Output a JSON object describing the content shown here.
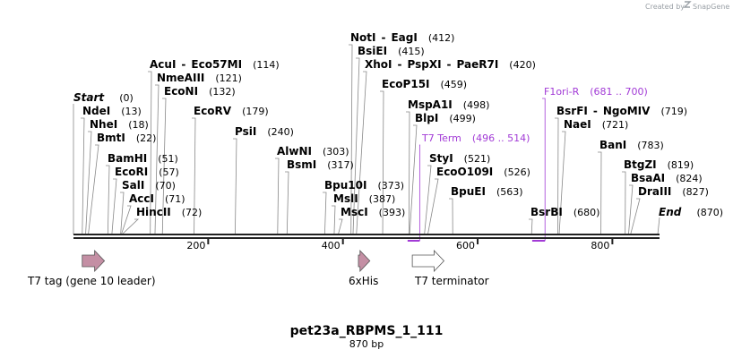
{
  "credit": {
    "text": "Created by",
    "brand": "SnapGene"
  },
  "map": {
    "title": "pet23a_RBPMS_1_111",
    "subtitle": "870 bp",
    "length": 870,
    "ticks": [
      200,
      400,
      600,
      800
    ],
    "ends": [
      {
        "name": "Start",
        "pos": "(0)"
      },
      {
        "name": "End",
        "pos": "(870)"
      }
    ],
    "sites": [
      {
        "names": [
          "NdeI"
        ],
        "pos": 13
      },
      {
        "names": [
          "NheI"
        ],
        "pos": 18
      },
      {
        "names": [
          "BmtI"
        ],
        "pos": 22
      },
      {
        "names": [
          "BamHI"
        ],
        "pos": 51
      },
      {
        "names": [
          "EcoRI"
        ],
        "pos": 57
      },
      {
        "names": [
          "SalI"
        ],
        "pos": 70
      },
      {
        "names": [
          "AccI"
        ],
        "pos": 71
      },
      {
        "names": [
          "HincII"
        ],
        "pos": 72
      },
      {
        "names": [
          "AcuI",
          "Eco57MI"
        ],
        "pos": 114
      },
      {
        "names": [
          "NmeAIII"
        ],
        "pos": 121
      },
      {
        "names": [
          "EcoNI"
        ],
        "pos": 132
      },
      {
        "names": [
          "EcoRV"
        ],
        "pos": 179
      },
      {
        "names": [
          "PsiI"
        ],
        "pos": 240
      },
      {
        "names": [
          "AlwNI"
        ],
        "pos": 303
      },
      {
        "names": [
          "BsmI"
        ],
        "pos": 317
      },
      {
        "names": [
          "Bpu10I"
        ],
        "pos": 373
      },
      {
        "names": [
          "MslI"
        ],
        "pos": 387
      },
      {
        "names": [
          "MscI"
        ],
        "pos": 393
      },
      {
        "names": [
          "NotI",
          "EagI"
        ],
        "pos": 412
      },
      {
        "names": [
          "BsiEI"
        ],
        "pos": 415
      },
      {
        "names": [
          "XhoI",
          "PspXI",
          "PaeR7I"
        ],
        "pos": 420
      },
      {
        "names": [
          "EcoP15I"
        ],
        "pos": 459
      },
      {
        "names": [
          "MspA1I"
        ],
        "pos": 498
      },
      {
        "names": [
          "BlpI"
        ],
        "pos": 499
      },
      {
        "names": [
          "StyI"
        ],
        "pos": 521
      },
      {
        "names": [
          "EcoO109I"
        ],
        "pos": 526
      },
      {
        "names": [
          "BpuEI"
        ],
        "pos": 563
      },
      {
        "names": [
          "BsrBI"
        ],
        "pos": 680
      },
      {
        "names": [
          "BsrFI",
          "NgoMIV"
        ],
        "pos": 719
      },
      {
        "names": [
          "NaeI"
        ],
        "pos": 721
      },
      {
        "names": [
          "BanI"
        ],
        "pos": 783
      },
      {
        "names": [
          "BtgZI"
        ],
        "pos": 819
      },
      {
        "names": [
          "BsaAI"
        ],
        "pos": 824
      },
      {
        "names": [
          "DraIII"
        ],
        "pos": 827
      }
    ],
    "primers": [
      {
        "name": "T7 Term",
        "range": "(496 .. 514)",
        "start": 496,
        "end": 514,
        "color": "#a23bd6"
      },
      {
        "name": "F1ori-R",
        "range": "(681 .. 700)",
        "start": 681,
        "end": 700,
        "color": "#a23bd6"
      }
    ],
    "features": [
      {
        "label": "T7 tag (gene 10 leader)",
        "start": 13,
        "end": 46,
        "color": "#c48fa4"
      },
      {
        "label": "6xHis",
        "start": 423,
        "end": 440,
        "color": "#c48fa4"
      },
      {
        "label": "T7 terminator",
        "start": 503,
        "end": 550,
        "color": "#ffffff"
      }
    ]
  }
}
